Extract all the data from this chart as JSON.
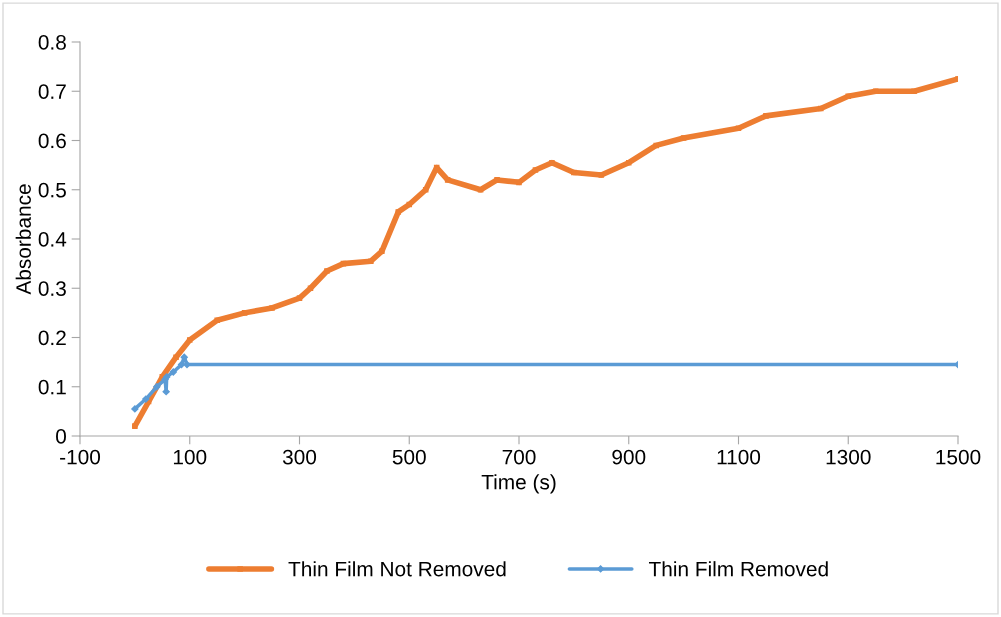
{
  "chart_data": {
    "type": "line",
    "xlabel": "Time (s)",
    "ylabel": "Absorbance",
    "xlim": [
      -100,
      1500
    ],
    "xticks": [
      -100,
      100,
      300,
      500,
      700,
      900,
      1100,
      1300,
      1500
    ],
    "ylim": [
      0,
      0.8
    ],
    "yticks": [
      0,
      0.1,
      0.2,
      0.3,
      0.4,
      0.5,
      0.6,
      0.7,
      0.8
    ],
    "grid": false,
    "legend": "bottom",
    "series": [
      {
        "name": "Thin Film Not Removed",
        "color": "#ed7d31",
        "marker": "square",
        "x": [
          0,
          25,
          50,
          75,
          100,
          150,
          200,
          250,
          300,
          320,
          350,
          380,
          430,
          450,
          480,
          500,
          530,
          550,
          570,
          630,
          660,
          700,
          730,
          760,
          800,
          850,
          900,
          950,
          1000,
          1100,
          1150,
          1250,
          1300,
          1350,
          1420,
          1500
        ],
        "values": [
          0.02,
          0.07,
          0.12,
          0.16,
          0.195,
          0.235,
          0.25,
          0.26,
          0.28,
          0.3,
          0.335,
          0.35,
          0.355,
          0.375,
          0.455,
          0.47,
          0.5,
          0.545,
          0.52,
          0.5,
          0.52,
          0.515,
          0.54,
          0.555,
          0.535,
          0.53,
          0.555,
          0.59,
          0.605,
          0.625,
          0.65,
          0.665,
          0.69,
          0.7,
          0.7,
          0.725
        ]
      },
      {
        "name": "Thin Film Removed",
        "color": "#5b9bd5",
        "marker": "diamond",
        "x": [
          0,
          20,
          40,
          55,
          57,
          58,
          70,
          85,
          90,
          95,
          1500
        ],
        "values": [
          0.055,
          0.075,
          0.1,
          0.115,
          0.09,
          0.12,
          0.13,
          0.145,
          0.16,
          0.145,
          0.145
        ]
      }
    ]
  }
}
